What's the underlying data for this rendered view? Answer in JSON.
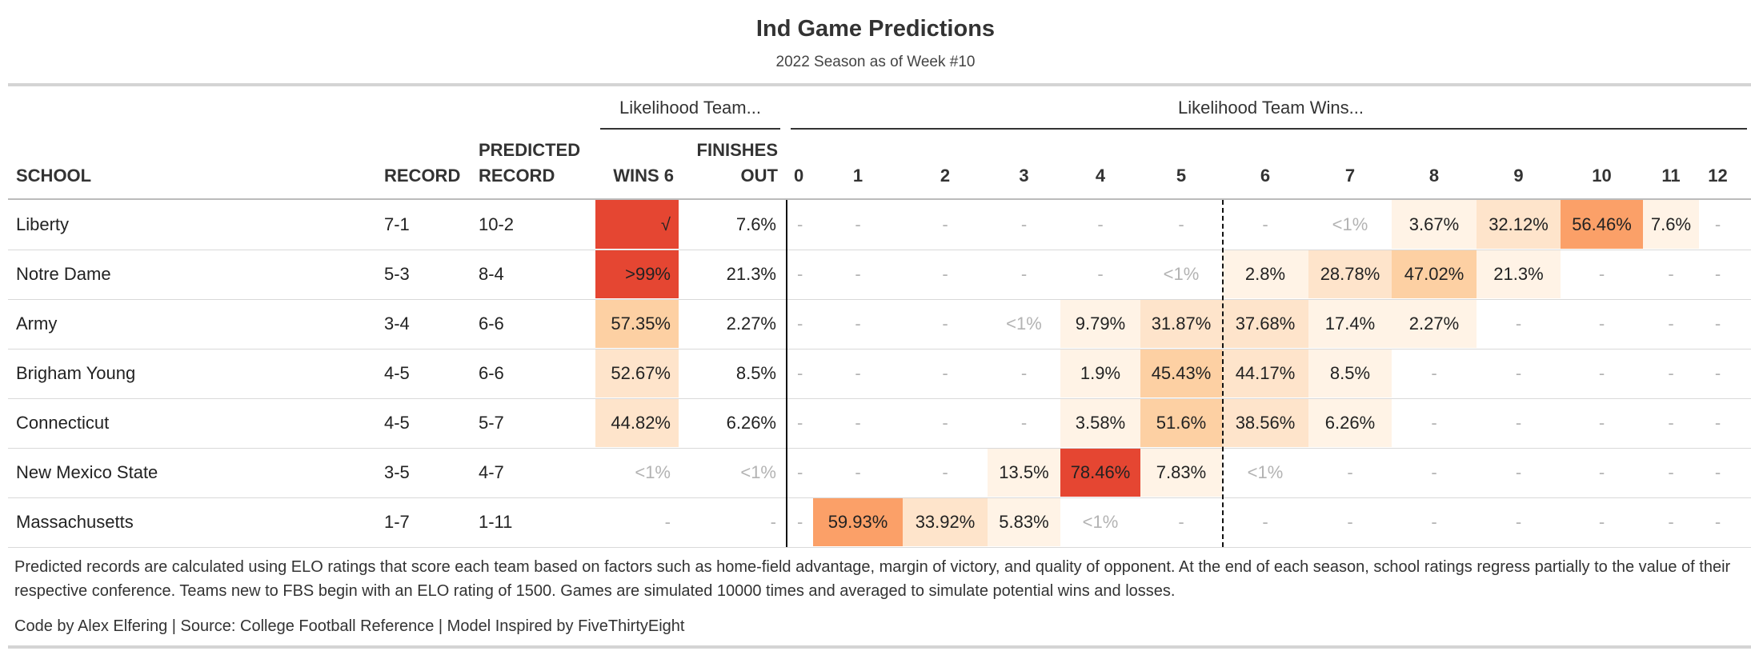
{
  "header": {
    "title": "Ind Game Predictions",
    "subtitle": "2022 Season as of Week #10"
  },
  "spanners": {
    "likelihood_team": "Likelihood Team...",
    "likelihood_wins": "Likelihood Team Wins..."
  },
  "columns": {
    "school": "SCHOOL",
    "record": "RECORD",
    "predicted_record": [
      "PREDICTED",
      "RECORD"
    ],
    "wins6": "WINS 6",
    "finishes_out": [
      "FINISHES",
      "OUT"
    ],
    "wins": [
      "0",
      "1",
      "2",
      "3",
      "4",
      "5",
      "6",
      "7",
      "8",
      "9",
      "10",
      "11",
      "12"
    ]
  },
  "colors": {
    "none": "#ffffff",
    "light": "#fff3e6",
    "pale": "#fee4cb",
    "peach": "#fdd0a3",
    "orange": "#fba068",
    "red": "#e54632"
  },
  "chart_data": {
    "type": "table",
    "rows": [
      {
        "school": "Liberty",
        "record": "7-1",
        "predicted": "10-2",
        "wins6": "√",
        "wins6_color": "red",
        "finishes": "7.6%",
        "wins": [
          "-",
          "-",
          "-",
          "-",
          "-",
          "-",
          "-",
          "<1%",
          "3.67%",
          "32.12%",
          "56.46%",
          "7.6%",
          "-"
        ],
        "wins_color": [
          "none",
          "none",
          "none",
          "none",
          "none",
          "none",
          "none",
          "none",
          "light",
          "pale",
          "orange",
          "light",
          "none"
        ]
      },
      {
        "school": "Notre Dame",
        "record": "5-3",
        "predicted": "8-4",
        "wins6": ">99%",
        "wins6_color": "red",
        "finishes": "21.3%",
        "wins": [
          "-",
          "-",
          "-",
          "-",
          "-",
          "<1%",
          "2.8%",
          "28.78%",
          "47.02%",
          "21.3%",
          "-",
          "-",
          "-"
        ],
        "wins_color": [
          "none",
          "none",
          "none",
          "none",
          "none",
          "none",
          "light",
          "pale",
          "peach",
          "light",
          "none",
          "none",
          "none"
        ]
      },
      {
        "school": "Army",
        "record": "3-4",
        "predicted": "6-6",
        "wins6": "57.35%",
        "wins6_color": "peach",
        "finishes": "2.27%",
        "wins": [
          "-",
          "-",
          "-",
          "<1%",
          "9.79%",
          "31.87%",
          "37.68%",
          "17.4%",
          "2.27%",
          "-",
          "-",
          "-",
          "-"
        ],
        "wins_color": [
          "none",
          "none",
          "none",
          "none",
          "light",
          "pale",
          "pale",
          "light",
          "light",
          "none",
          "none",
          "none",
          "none"
        ]
      },
      {
        "school": "Brigham Young",
        "record": "4-5",
        "predicted": "6-6",
        "wins6": "52.67%",
        "wins6_color": "pale",
        "finishes": "8.5%",
        "wins": [
          "-",
          "-",
          "-",
          "-",
          "1.9%",
          "45.43%",
          "44.17%",
          "8.5%",
          "-",
          "-",
          "-",
          "-",
          "-"
        ],
        "wins_color": [
          "none",
          "none",
          "none",
          "none",
          "light",
          "peach",
          "pale",
          "light",
          "none",
          "none",
          "none",
          "none",
          "none"
        ]
      },
      {
        "school": "Connecticut",
        "record": "4-5",
        "predicted": "5-7",
        "wins6": "44.82%",
        "wins6_color": "pale",
        "finishes": "6.26%",
        "wins": [
          "-",
          "-",
          "-",
          "-",
          "3.58%",
          "51.6%",
          "38.56%",
          "6.26%",
          "-",
          "-",
          "-",
          "-",
          "-"
        ],
        "wins_color": [
          "none",
          "none",
          "none",
          "none",
          "light",
          "peach",
          "pale",
          "light",
          "none",
          "none",
          "none",
          "none",
          "none"
        ]
      },
      {
        "school": "New Mexico State",
        "record": "3-5",
        "predicted": "4-7",
        "wins6": "<1%",
        "wins6_color": "none",
        "finishes": "<1%",
        "wins": [
          "-",
          "-",
          "-",
          "13.5%",
          "78.46%",
          "7.83%",
          "<1%",
          "-",
          "-",
          "-",
          "-",
          "-",
          "-"
        ],
        "wins_color": [
          "none",
          "none",
          "none",
          "light",
          "red",
          "light",
          "none",
          "none",
          "none",
          "none",
          "none",
          "none",
          "none"
        ]
      },
      {
        "school": "Massachusetts",
        "record": "1-7",
        "predicted": "1-11",
        "wins6": "-",
        "wins6_color": "none",
        "finishes": "-",
        "wins": [
          "-",
          "59.93%",
          "33.92%",
          "5.83%",
          "<1%",
          "-",
          "-",
          "-",
          "-",
          "-",
          "-",
          "-",
          "-"
        ],
        "wins_color": [
          "none",
          "orange",
          "pale",
          "light",
          "none",
          "none",
          "none",
          "none",
          "none",
          "none",
          "none",
          "none",
          "none"
        ]
      }
    ]
  },
  "footer": {
    "note": "Predicted records are calculated using ELO ratings that score each team based on factors such as home-field advantage, margin of victory, and quality of opponent. At the end of each season, school ratings regress partially to the value of their respective conference. Teams new to FBS begin with an ELO rating of 1500. Games are simulated 10000 times and averaged to simulate potential wins and losses.",
    "credits": "Code by Alex Elfering | Source: College Football Reference | Model Inspired by FiveThirtyEight"
  }
}
